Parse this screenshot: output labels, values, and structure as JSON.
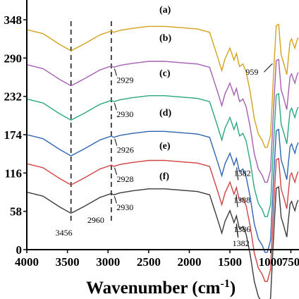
{
  "chart_data": {
    "type": "line",
    "xlabel": "Wavenumber (cm",
    "xlabel_sup": "-1",
    "xlabel_close": ")",
    "xlim": [
      4000,
      650
    ],
    "x_reversed": true,
    "ylim": [
      0,
      348
    ],
    "x_ticks": [
      {
        "value": 4000,
        "label": "4000"
      },
      {
        "value": 3500,
        "label": "3500"
      },
      {
        "value": 3000,
        "label": "3000"
      },
      {
        "value": 2500,
        "label": "2500"
      },
      {
        "value": 2000,
        "label": "2000"
      },
      {
        "value": 1500,
        "label": "1500"
      },
      {
        "value": 1000,
        "label": "1000"
      },
      {
        "value": 750,
        "label": "750"
      }
    ],
    "y_ticks": [
      {
        "value": 348,
        "label": "348"
      },
      {
        "value": 290,
        "label": "290"
      },
      {
        "value": 232,
        "label": "232"
      },
      {
        "value": 174,
        "label": "174"
      },
      {
        "value": 116,
        "label": "116"
      },
      {
        "value": 58,
        "label": "58"
      },
      {
        "value": 0,
        "label": "0"
      }
    ],
    "reference_lines": [
      {
        "x": 3456,
        "label": "3456",
        "style": "dashed"
      },
      {
        "x": 2960,
        "label": "2960",
        "style": "dashed"
      }
    ],
    "shape_x": [
      4000,
      3800,
      3600,
      3456,
      3300,
      3100,
      2960,
      2930,
      2850,
      2700,
      2500,
      2300,
      2100,
      1900,
      1750,
      1650,
      1600,
      1560,
      1500,
      1450,
      1420,
      1382,
      1340,
      1300,
      1250,
      1200,
      1150,
      1100,
      1070,
      1040,
      1000,
      960,
      930,
      900,
      870,
      840,
      800,
      780,
      760,
      740,
      720,
      700,
      680,
      660
    ],
    "shape_y": [
      0,
      -6,
      -22,
      -32,
      -22,
      -8,
      -2,
      -4,
      -1,
      2,
      5,
      5,
      3,
      1,
      -4,
      -42,
      -62,
      -44,
      -28,
      -46,
      -36,
      -56,
      -52,
      -64,
      -95,
      -135,
      -158,
      -168,
      -178,
      -178,
      -160,
      -60,
      6,
      8,
      -38,
      -50,
      -68,
      -42,
      -18,
      -14,
      -22,
      -28,
      -18,
      -12
    ],
    "series": [
      {
        "name": "(a)",
        "color": "#d4a21a",
        "offset": 333,
        "annotation": "959",
        "annotation_x": 959
      },
      {
        "name": "(b)",
        "color": "#a55fb2",
        "offset": 280,
        "annotation": "2929",
        "annotation_x": 2929
      },
      {
        "name": "(c)",
        "color": "#2aa781",
        "offset": 228,
        "annotation": "2930",
        "annotation_x": 2930
      },
      {
        "name": "(d)",
        "color": "#2e64b2",
        "offset": 174,
        "annotation": "2926",
        "annotation_x": 2926,
        "annotation2": "1382",
        "annotation2_x": 1382
      },
      {
        "name": "(e)",
        "color": "#d24242",
        "offset": 130,
        "annotation": "2928",
        "annotation_x": 2928,
        "annotation2": "1388",
        "annotation2_x": 1388
      },
      {
        "name": "(f)",
        "color": "#3a3a3a",
        "offset": 87,
        "annotation": "2930",
        "annotation_x": 2930,
        "annotation2": "1386",
        "annotation2_x": 1386
      },
      {
        "name": "",
        "color": "#3a3a3a",
        "offset": 0,
        "annotation": "",
        "annotation2": "1382",
        "annotation2_x": 1382,
        "hidden": true
      }
    ]
  }
}
